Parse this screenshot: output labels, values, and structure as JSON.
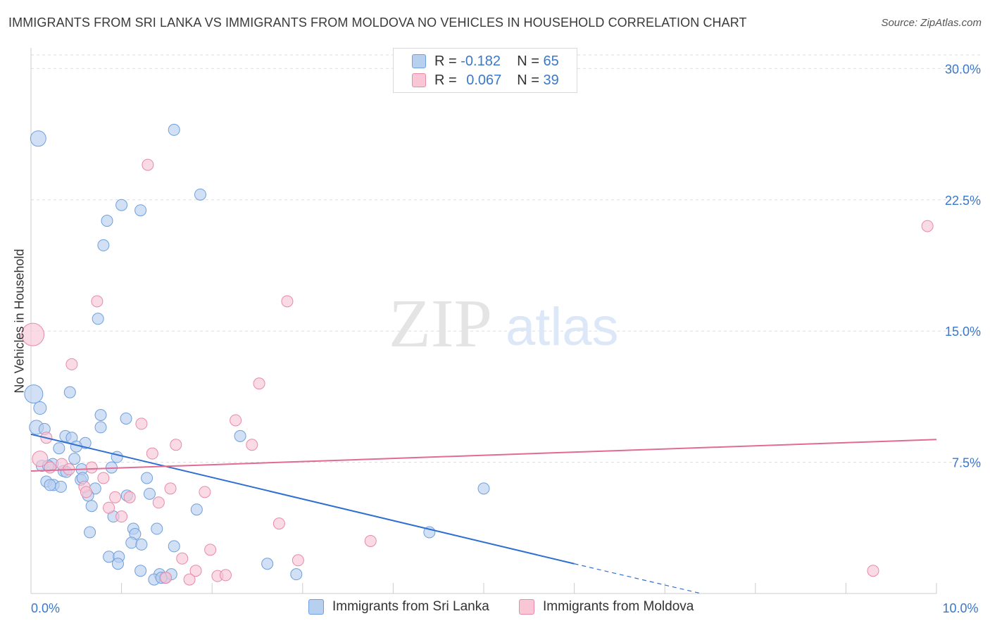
{
  "title": "IMMIGRANTS FROM SRI LANKA VS IMMIGRANTS FROM MOLDOVA NO VEHICLES IN HOUSEHOLD CORRELATION CHART",
  "source": "Source: ZipAtlas.com",
  "watermark": {
    "zip": "ZIP",
    "atlas": "atlas"
  },
  "legend": {
    "r_label": "R =",
    "n_label": "N =",
    "rows": [
      {
        "r": "-0.182",
        "n": "65"
      },
      {
        "r": "0.067",
        "n": "39"
      }
    ]
  },
  "colors": {
    "blue_fill": "#b8d0f0",
    "blue_stroke": "#6f9fdc",
    "blue_line": "#2f6fd1",
    "pink_fill": "#f8c6d5",
    "pink_stroke": "#e88aa8",
    "pink_line": "#e06b94",
    "axis_text": "#3a78c9",
    "grid": "#dddddd"
  },
  "chart_data": {
    "type": "scatter",
    "title": "IMMIGRANTS FROM SRI LANKA VS IMMIGRANTS FROM MOLDOVA NO VEHICLES IN HOUSEHOLD CORRELATION CHART",
    "xlabel": "",
    "ylabel": "No Vehicles in Household",
    "xlim": [
      0,
      10
    ],
    "ylim": [
      0,
      30
    ],
    "x_ticks": [
      {
        "value": 0,
        "label": "0.0%"
      },
      {
        "value": 10,
        "label": "10.0%"
      }
    ],
    "y_ticks": [
      {
        "value": 7.5,
        "label": "7.5%"
      },
      {
        "value": 15,
        "label": "15.0%"
      },
      {
        "value": 22.5,
        "label": "22.5%"
      },
      {
        "value": 30,
        "label": "30.0%"
      }
    ],
    "grid": true,
    "legend_position": "top-center",
    "series": [
      {
        "name": "Immigrants from Sri Lanka",
        "color": "#6f9fdc",
        "trend": {
          "x0": 0.0,
          "y0": 9.1,
          "x1": 6.0,
          "y1": 1.7,
          "dashed_to_x": 7.4,
          "dashed_to_y": 0.0
        },
        "points": [
          {
            "x": 0.08,
            "y": 26.0,
            "s": 11
          },
          {
            "x": 1.58,
            "y": 26.5,
            "s": 8
          },
          {
            "x": 1.87,
            "y": 22.8,
            "s": 8
          },
          {
            "x": 1.0,
            "y": 22.2,
            "s": 8
          },
          {
            "x": 1.21,
            "y": 21.9,
            "s": 8
          },
          {
            "x": 0.84,
            "y": 21.3,
            "s": 8
          },
          {
            "x": 0.8,
            "y": 19.9,
            "s": 8
          },
          {
            "x": 0.74,
            "y": 15.7,
            "s": 8
          },
          {
            "x": 0.03,
            "y": 11.4,
            "s": 13
          },
          {
            "x": 0.43,
            "y": 11.5,
            "s": 8
          },
          {
            "x": 0.1,
            "y": 10.6,
            "s": 9
          },
          {
            "x": 0.77,
            "y": 10.2,
            "s": 8
          },
          {
            "x": 1.05,
            "y": 10.0,
            "s": 8
          },
          {
            "x": 0.06,
            "y": 9.5,
            "s": 10
          },
          {
            "x": 0.15,
            "y": 9.4,
            "s": 8
          },
          {
            "x": 0.77,
            "y": 9.5,
            "s": 8
          },
          {
            "x": 0.38,
            "y": 9.0,
            "s": 8
          },
          {
            "x": 0.45,
            "y": 8.9,
            "s": 8
          },
          {
            "x": 2.31,
            "y": 9.0,
            "s": 8
          },
          {
            "x": 0.6,
            "y": 8.6,
            "s": 8
          },
          {
            "x": 0.5,
            "y": 8.4,
            "s": 8
          },
          {
            "x": 0.31,
            "y": 8.3,
            "s": 8
          },
          {
            "x": 0.95,
            "y": 7.8,
            "s": 8
          },
          {
            "x": 0.48,
            "y": 7.7,
            "s": 8
          },
          {
            "x": 0.24,
            "y": 7.4,
            "s": 8
          },
          {
            "x": 0.12,
            "y": 7.3,
            "s": 8
          },
          {
            "x": 0.19,
            "y": 7.3,
            "s": 8
          },
          {
            "x": 0.36,
            "y": 7.0,
            "s": 8
          },
          {
            "x": 0.39,
            "y": 6.95,
            "s": 8
          },
          {
            "x": 0.56,
            "y": 7.1,
            "s": 8
          },
          {
            "x": 0.89,
            "y": 7.2,
            "s": 8
          },
          {
            "x": 1.28,
            "y": 6.6,
            "s": 8
          },
          {
            "x": 0.17,
            "y": 6.4,
            "s": 8
          },
          {
            "x": 0.25,
            "y": 6.2,
            "s": 8
          },
          {
            "x": 0.33,
            "y": 6.1,
            "s": 8
          },
          {
            "x": 0.21,
            "y": 6.2,
            "s": 8
          },
          {
            "x": 0.55,
            "y": 6.5,
            "s": 8
          },
          {
            "x": 0.57,
            "y": 6.6,
            "s": 8
          },
          {
            "x": 0.71,
            "y": 6.0,
            "s": 8
          },
          {
            "x": 0.63,
            "y": 5.6,
            "s": 8
          },
          {
            "x": 1.06,
            "y": 5.6,
            "s": 8
          },
          {
            "x": 1.31,
            "y": 5.7,
            "s": 8
          },
          {
            "x": 0.67,
            "y": 5.0,
            "s": 8
          },
          {
            "x": 1.83,
            "y": 4.8,
            "s": 8
          },
          {
            "x": 0.91,
            "y": 4.4,
            "s": 8
          },
          {
            "x": 1.13,
            "y": 3.7,
            "s": 8
          },
          {
            "x": 1.39,
            "y": 3.7,
            "s": 8
          },
          {
            "x": 1.15,
            "y": 3.4,
            "s": 8
          },
          {
            "x": 0.65,
            "y": 3.5,
            "s": 8
          },
          {
            "x": 4.4,
            "y": 3.5,
            "s": 8
          },
          {
            "x": 5.0,
            "y": 6.0,
            "s": 8
          },
          {
            "x": 1.11,
            "y": 2.9,
            "s": 8
          },
          {
            "x": 1.22,
            "y": 2.8,
            "s": 8
          },
          {
            "x": 1.58,
            "y": 2.7,
            "s": 8
          },
          {
            "x": 0.86,
            "y": 2.1,
            "s": 8
          },
          {
            "x": 0.97,
            "y": 2.1,
            "s": 8
          },
          {
            "x": 0.96,
            "y": 1.7,
            "s": 8
          },
          {
            "x": 2.61,
            "y": 1.7,
            "s": 8
          },
          {
            "x": 1.21,
            "y": 1.3,
            "s": 8
          },
          {
            "x": 1.42,
            "y": 1.1,
            "s": 8
          },
          {
            "x": 1.48,
            "y": 0.9,
            "s": 8
          },
          {
            "x": 1.36,
            "y": 0.8,
            "s": 8
          },
          {
            "x": 2.93,
            "y": 1.1,
            "s": 8
          },
          {
            "x": 1.55,
            "y": 1.1,
            "s": 8
          },
          {
            "x": 1.44,
            "y": 0.9,
            "s": 8
          }
        ]
      },
      {
        "name": "Immigrants from Moldova",
        "color": "#e88aa8",
        "trend": {
          "x0": 0.0,
          "y0": 7.0,
          "x1": 10.0,
          "y1": 8.8
        },
        "points": [
          {
            "x": 1.29,
            "y": 24.5,
            "s": 8
          },
          {
            "x": 9.9,
            "y": 21.0,
            "s": 8
          },
          {
            "x": 0.73,
            "y": 16.7,
            "s": 8
          },
          {
            "x": 2.83,
            "y": 16.7,
            "s": 8
          },
          {
            "x": 0.02,
            "y": 14.8,
            "s": 16
          },
          {
            "x": 0.45,
            "y": 13.1,
            "s": 8
          },
          {
            "x": 2.52,
            "y": 12.0,
            "s": 8
          },
          {
            "x": 2.26,
            "y": 9.9,
            "s": 8
          },
          {
            "x": 1.22,
            "y": 9.7,
            "s": 8
          },
          {
            "x": 0.17,
            "y": 8.9,
            "s": 8
          },
          {
            "x": 1.6,
            "y": 8.5,
            "s": 8
          },
          {
            "x": 2.44,
            "y": 8.5,
            "s": 8
          },
          {
            "x": 1.34,
            "y": 8.0,
            "s": 8
          },
          {
            "x": 0.1,
            "y": 7.7,
            "s": 11
          },
          {
            "x": 0.34,
            "y": 7.4,
            "s": 8
          },
          {
            "x": 0.21,
            "y": 7.2,
            "s": 8
          },
          {
            "x": 0.42,
            "y": 7.1,
            "s": 8
          },
          {
            "x": 0.67,
            "y": 7.2,
            "s": 8
          },
          {
            "x": 0.8,
            "y": 6.6,
            "s": 8
          },
          {
            "x": 0.59,
            "y": 6.1,
            "s": 8
          },
          {
            "x": 1.54,
            "y": 6.0,
            "s": 8
          },
          {
            "x": 0.61,
            "y": 5.8,
            "s": 8
          },
          {
            "x": 1.92,
            "y": 5.8,
            "s": 8
          },
          {
            "x": 0.93,
            "y": 5.5,
            "s": 8
          },
          {
            "x": 1.09,
            "y": 5.5,
            "s": 8
          },
          {
            "x": 1.41,
            "y": 5.2,
            "s": 8
          },
          {
            "x": 0.86,
            "y": 4.9,
            "s": 8
          },
          {
            "x": 1.0,
            "y": 4.4,
            "s": 8
          },
          {
            "x": 2.74,
            "y": 4.0,
            "s": 8
          },
          {
            "x": 3.75,
            "y": 3.0,
            "s": 8
          },
          {
            "x": 1.98,
            "y": 2.5,
            "s": 8
          },
          {
            "x": 1.67,
            "y": 2.0,
            "s": 8
          },
          {
            "x": 2.95,
            "y": 1.9,
            "s": 8
          },
          {
            "x": 1.82,
            "y": 1.3,
            "s": 8
          },
          {
            "x": 2.06,
            "y": 1.0,
            "s": 8
          },
          {
            "x": 2.15,
            "y": 1.05,
            "s": 8
          },
          {
            "x": 1.49,
            "y": 0.9,
            "s": 8
          },
          {
            "x": 1.75,
            "y": 0.8,
            "s": 8
          },
          {
            "x": 9.3,
            "y": 1.3,
            "s": 8
          }
        ]
      }
    ]
  }
}
